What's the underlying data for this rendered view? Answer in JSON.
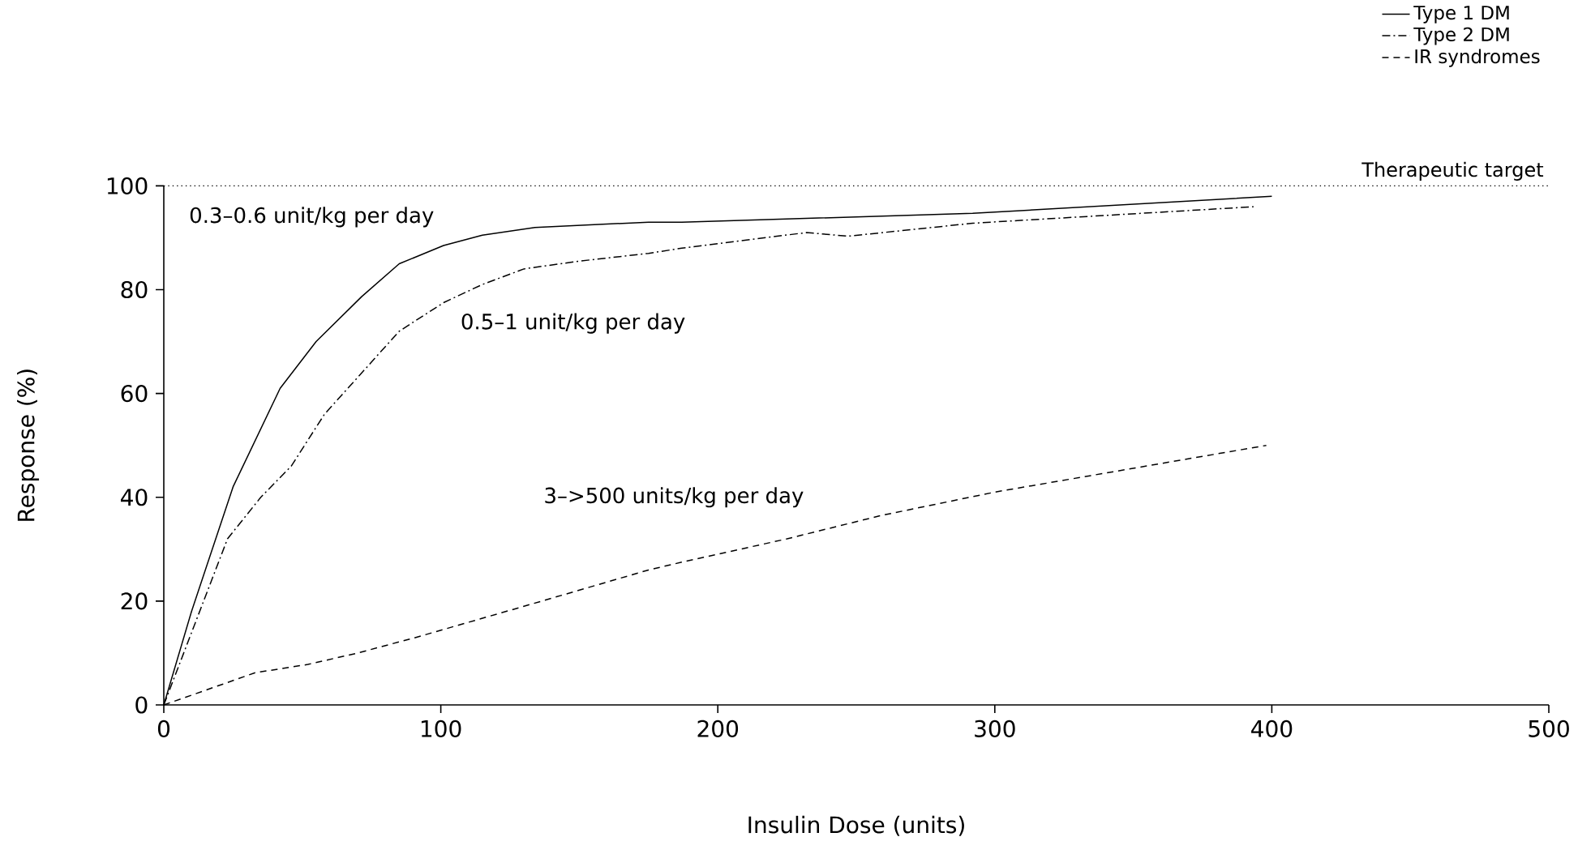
{
  "chart_data": {
    "type": "line",
    "xlabel": "Insulin Dose (units)",
    "ylabel": "Response (%)",
    "xlim": [
      0,
      500
    ],
    "ylim": [
      0,
      100
    ],
    "xticks": [
      0,
      100,
      200,
      300,
      400,
      500
    ],
    "yticks": [
      0,
      20,
      40,
      60,
      80,
      100
    ],
    "grid": false,
    "legend": "top right",
    "marker": "none",
    "series": [
      {
        "name": "Type 1 DM",
        "color": "#000000",
        "line_style": "solid",
        "x": [
          0,
          10,
          25,
          42,
          55,
          71.5,
          85,
          101,
          115,
          134,
          175,
          187,
          292,
          400
        ],
        "values": [
          0,
          18,
          42,
          61,
          70,
          78.7,
          85,
          88.5,
          90.5,
          92,
          93,
          93,
          94.7,
          98
        ]
      },
      {
        "name": "Type 2 DM",
        "color": "#000000",
        "line_style": "dashdot",
        "x": [
          0,
          23,
          35,
          46,
          58,
          71.5,
          85,
          101,
          115,
          130,
          150,
          175,
          187,
          232,
          247,
          292,
          394
        ],
        "values": [
          0,
          32,
          40,
          46,
          56,
          64,
          72,
          77.5,
          81,
          84,
          85.5,
          87,
          88,
          91,
          90.3,
          92.8,
          96
        ]
      },
      {
        "name": "IR syndromes",
        "color": "#000000",
        "line_style": "dashed",
        "x": [
          0,
          33,
          52,
          70,
          91,
          130,
          175,
          187,
          225,
          259,
          300,
          398
        ],
        "values": [
          0,
          6.2,
          7.8,
          10,
          13,
          19,
          26,
          27.5,
          32,
          36.5,
          41,
          50
        ]
      }
    ],
    "ref_lines": [
      {
        "axis": "y",
        "value": 100,
        "label": "Therapeutic target",
        "line_style": "dotted"
      }
    ],
    "annotations": [
      "0.3–0.6 unit/kg per day",
      "0.5–1 unit/kg per day",
      "3–>500 units/kg per day"
    ]
  }
}
